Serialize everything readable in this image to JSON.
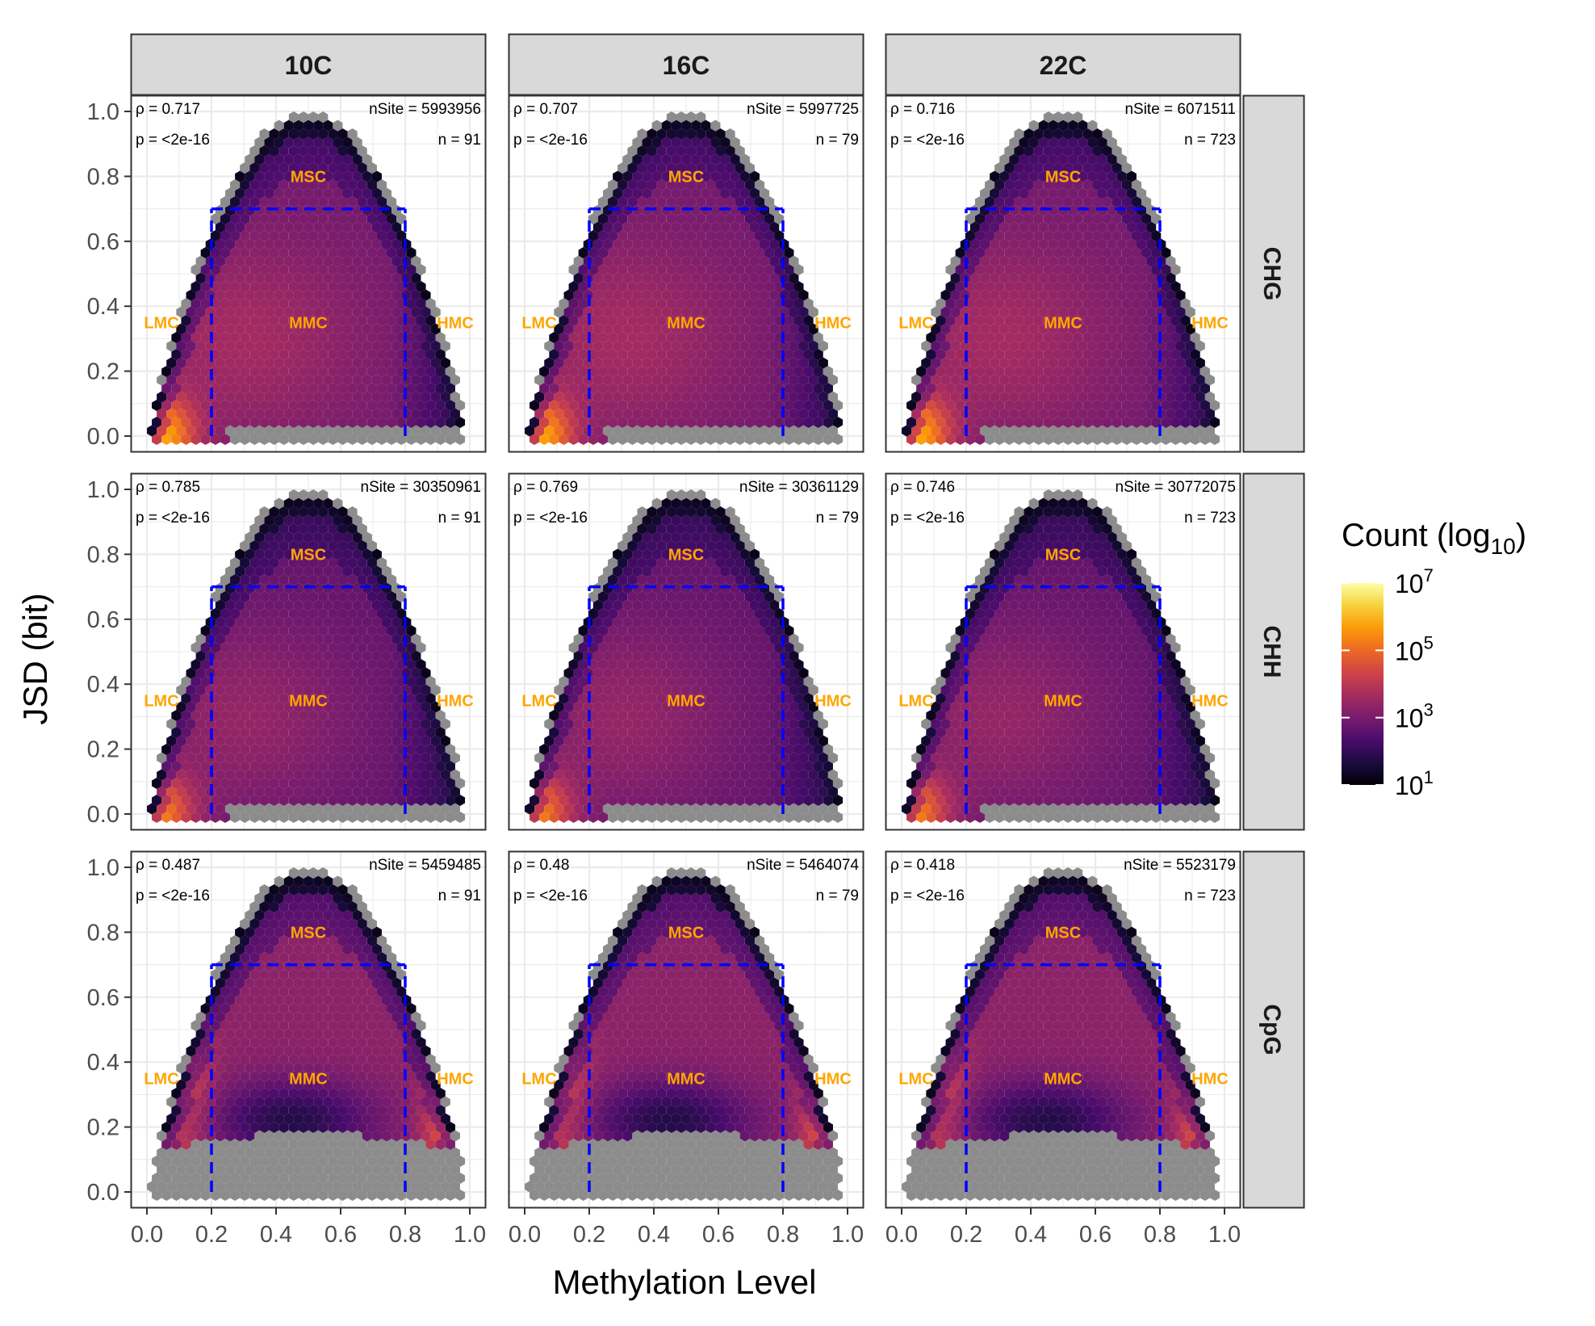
{
  "chart_data": {
    "type": "hexbin",
    "xlabel": "Methylation Level",
    "ylabel": "JSD (bit)",
    "xlim": [
      0,
      1
    ],
    "ylim": [
      0,
      1
    ],
    "x_ticks": [
      "0.0",
      "0.2",
      "0.4",
      "0.6",
      "0.8",
      "1.0"
    ],
    "y_ticks": [
      "0.0",
      "0.2",
      "0.4",
      "0.6",
      "0.8",
      "1.0"
    ],
    "columns": [
      "10C",
      "16C",
      "22C"
    ],
    "rows": [
      "CHG",
      "CHH",
      "CpG"
    ],
    "zone_labels": [
      "LMC",
      "MMC",
      "HMC",
      "MSC"
    ],
    "zone_box": {
      "x": [
        0.2,
        0.8
      ],
      "y_max": 0.7
    },
    "grid": true,
    "legend": {
      "title_main": "Count (log",
      "title_sub": "10",
      "title_end": ")",
      "placement": "right",
      "ticks": [
        {
          "base": "10",
          "exp": "7",
          "value": 7
        },
        {
          "base": "10",
          "exp": "5",
          "value": 5
        },
        {
          "base": "10",
          "exp": "3",
          "value": 3
        },
        {
          "base": "10",
          "exp": "1",
          "value": 1
        }
      ],
      "range": [
        1,
        7
      ],
      "colors": [
        "#000004",
        "#1b0c41",
        "#4a0c6b",
        "#781c6d",
        "#a52c60",
        "#cf4446",
        "#ed6925",
        "#fb9b06",
        "#f7d13d",
        "#fcffa4"
      ]
    },
    "panels": [
      {
        "row": "CHG",
        "col": "10C",
        "rho": "ρ = 0.717",
        "p": "p = <2e-16",
        "nsite": "nSite = 5993956",
        "n": "n = 91"
      },
      {
        "row": "CHG",
        "col": "16C",
        "rho": "ρ = 0.707",
        "p": "p = <2e-16",
        "nsite": "nSite = 5997725",
        "n": "n = 79"
      },
      {
        "row": "CHG",
        "col": "22C",
        "rho": "ρ = 0.716",
        "p": "p = <2e-16",
        "nsite": "nSite = 6071511",
        "n": "n = 723"
      },
      {
        "row": "CHH",
        "col": "10C",
        "rho": "ρ = 0.785",
        "p": "p = <2e-16",
        "nsite": "nSite = 30350961",
        "n": "n = 91"
      },
      {
        "row": "CHH",
        "col": "16C",
        "rho": "ρ = 0.769",
        "p": "p = <2e-16",
        "nsite": "nSite = 30361129",
        "n": "n = 79"
      },
      {
        "row": "CHH",
        "col": "22C",
        "rho": "ρ = 0.746",
        "p": "p = <2e-16",
        "nsite": "nSite = 30772075",
        "n": "n = 723"
      },
      {
        "row": "CpG",
        "col": "10C",
        "rho": "ρ = 0.487",
        "p": "p = <2e-16",
        "nsite": "nSite = 5459485",
        "n": "n = 91"
      },
      {
        "row": "CpG",
        "col": "16C",
        "rho": "ρ = 0.48",
        "p": "p = <2e-16",
        "nsite": "nSite = 5464074",
        "n": "n = 79"
      },
      {
        "row": "CpG",
        "col": "22C",
        "rho": "ρ = 0.418",
        "p": "p = <2e-16",
        "nsite": "nSite = 5523179",
        "n": "n = 723"
      }
    ]
  },
  "colors": {
    "zone_label": "#ffa500",
    "zone_box": "#0000ff",
    "strip_fill": "#d9d9d9",
    "panel_border": "#333333",
    "grid": "#ebebeb",
    "low_count": "#8c8c8c"
  }
}
